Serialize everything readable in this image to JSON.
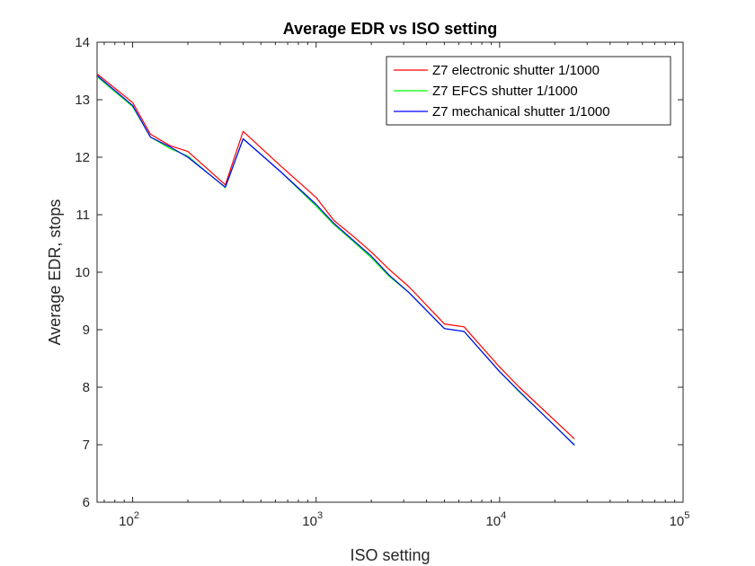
{
  "chart_data": {
    "type": "line",
    "title": "Average EDR vs ISO setting",
    "xlabel": "ISO setting",
    "ylabel": "Average EDR, stops",
    "xscale": "log",
    "xlim": [
      64,
      100000
    ],
    "ylim": [
      6,
      14
    ],
    "xticks": [
      {
        "value": 100,
        "base": "10",
        "exp": "2"
      },
      {
        "value": 1000,
        "base": "10",
        "exp": "3"
      },
      {
        "value": 10000,
        "base": "10",
        "exp": "4"
      },
      {
        "value": 100000,
        "base": "10",
        "exp": "5"
      }
    ],
    "yticks": [
      "6",
      "7",
      "8",
      "9",
      "10",
      "11",
      "12",
      "13",
      "14"
    ],
    "grid": false,
    "legend_position": "top-right",
    "x": [
      64,
      100,
      125,
      160,
      200,
      320,
      400,
      640,
      1000,
      1250,
      1600,
      2000,
      2500,
      3200,
      5000,
      6400,
      10000,
      12800,
      25600
    ],
    "series": [
      {
        "name": "Z7 electronic shutter 1/1000",
        "color": "#ff0000",
        "values": [
          13.45,
          12.95,
          12.4,
          12.2,
          12.1,
          11.52,
          12.45,
          11.85,
          11.3,
          10.9,
          10.62,
          10.35,
          10.05,
          9.75,
          9.1,
          9.05,
          8.35,
          8.0,
          7.1
        ]
      },
      {
        "name": "Z7 EFCS shutter 1/1000",
        "color": "#00ff00",
        "values": [
          13.4,
          12.88,
          12.35,
          12.15,
          12.02,
          11.47,
          12.32,
          11.75,
          11.15,
          10.83,
          10.53,
          10.25,
          9.93,
          9.65,
          9.02,
          8.97,
          8.27,
          7.92,
          7.0
        ]
      },
      {
        "name": "Z7 mechanical shutter 1/1000",
        "color": "#0000ff",
        "values": [
          13.42,
          12.9,
          12.35,
          12.18,
          12.0,
          11.48,
          12.32,
          11.75,
          11.18,
          10.85,
          10.55,
          10.28,
          9.95,
          9.65,
          9.02,
          8.97,
          8.27,
          7.93,
          6.99
        ]
      }
    ]
  }
}
